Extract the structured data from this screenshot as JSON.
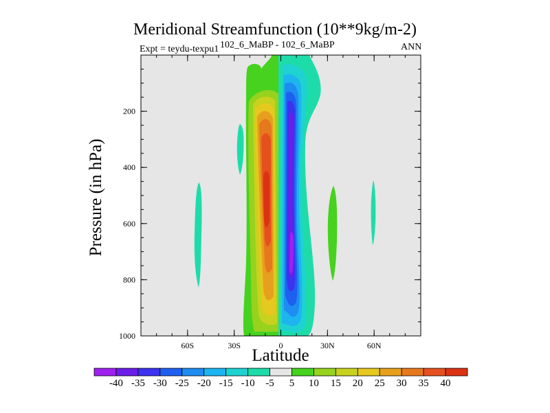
{
  "title": "Meridional Streamfunction (10**9kg/m-2)",
  "left_label": "Expt = teydu-texpu1",
  "center_label": "102_6_MaBP - 102_6_MaBP",
  "right_label": "ANN",
  "chart_data": {
    "type": "contour",
    "xlabel": "Latitude",
    "ylabel": "Pressure (in hPa)",
    "xlim": [
      -90,
      90
    ],
    "ylim": [
      1000,
      0
    ],
    "x_ticks": [
      {
        "value": -60,
        "label": "60S"
      },
      {
        "value": -30,
        "label": "30S"
      },
      {
        "value": 0,
        "label": "0"
      },
      {
        "value": 30,
        "label": "30N"
      },
      {
        "value": 60,
        "label": "60N"
      }
    ],
    "y_ticks": [
      {
        "value": 200,
        "label": "200"
      },
      {
        "value": 400,
        "label": "400"
      },
      {
        "value": 600,
        "label": "600"
      },
      {
        "value": 800,
        "label": "800"
      },
      {
        "value": 1000,
        "label": "1000"
      }
    ],
    "colorbar": {
      "levels": [
        -40,
        -35,
        -30,
        -25,
        -20,
        -15,
        -10,
        -5,
        5,
        10,
        15,
        20,
        25,
        30,
        35,
        40
      ],
      "colors": [
        "#a020f0",
        "#6a1ee8",
        "#3c32f0",
        "#1f5ff0",
        "#1e8cf0",
        "#1eb4f0",
        "#1ed2d2",
        "#1edcaa",
        "#e6e6e6",
        "#46d21e",
        "#96d21e",
        "#c8d21e",
        "#e6c81e",
        "#e6a01e",
        "#e6781e",
        "#e6501e",
        "#dc3214"
      ]
    },
    "features": [
      {
        "name": "positive cell",
        "lat_range": [
          -20,
          -2
        ],
        "pressure_range": [
          0,
          990
        ],
        "max": 40,
        "max_at": {
          "lat": -10,
          "pressure": 550
        }
      },
      {
        "name": "negative cell",
        "lat_range": [
          0,
          20
        ],
        "pressure_range": [
          0,
          990
        ],
        "min": -40,
        "min_at": {
          "lat": 8,
          "pressure": 750
        }
      },
      {
        "name": "weak patch",
        "lat": -56,
        "pressure_range": [
          470,
          820
        ],
        "value": -5
      },
      {
        "name": "weak patch",
        "lat": -25,
        "pressure_range": [
          240,
          420
        ],
        "value": -5
      },
      {
        "name": "weak patch",
        "lat": 33,
        "pressure_range": [
          460,
          790
        ],
        "value": 5
      },
      {
        "name": "weak patch",
        "lat": 60,
        "pressure_range": [
          450,
          720
        ],
        "value": -5
      }
    ]
  }
}
